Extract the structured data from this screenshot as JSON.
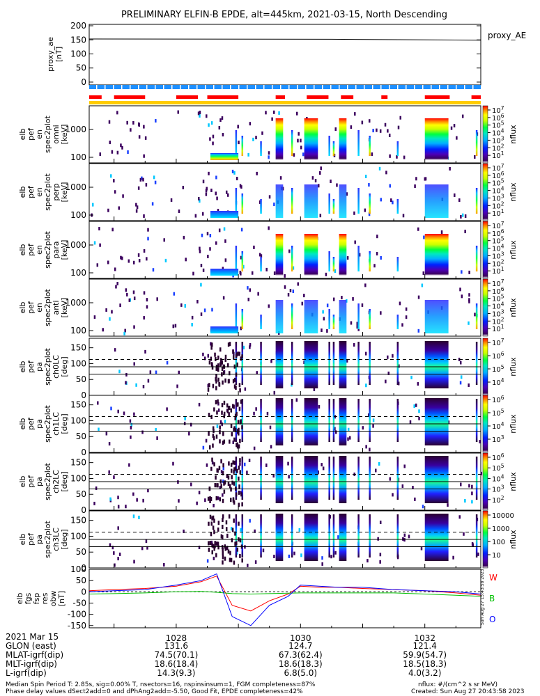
{
  "title": "PRELIMINARY ELFIN-B EPDE, alt=445km, 2021-03-15, North Descending",
  "ae_panel": {
    "ylabel_lines": [
      "proxy_ae",
      "[nT]"
    ],
    "side_label": "proxy_AE",
    "yticks": [
      "200",
      "150",
      "100",
      "50",
      "0"
    ],
    "ylim": [
      -10,
      205
    ]
  },
  "spectro_panels": [
    {
      "name": "en-omni",
      "ylabel_lines": [
        "elb",
        "pef",
        "en",
        "spec2plot",
        "omni",
        "[keV]"
      ],
      "yticks": [
        "1000",
        "100"
      ],
      "cbar_ticks": [
        "10^7",
        "10^6",
        "10^5",
        "10^4",
        "10^3",
        "10^2",
        "10^1"
      ],
      "cbar_label": "nflux"
    },
    {
      "name": "en-perp",
      "ylabel_lines": [
        "elb",
        "pef",
        "en",
        "spec2plot",
        "perp",
        "[keV]"
      ],
      "yticks": [
        "1000",
        "100"
      ],
      "cbar_ticks": [
        "10^7",
        "10^6",
        "10^5",
        "10^4",
        "10^3",
        "10^2",
        "10^1"
      ],
      "cbar_label": "nflux"
    },
    {
      "name": "en-para",
      "ylabel_lines": [
        "elb",
        "pef",
        "en",
        "spec2plot",
        "para",
        "[keV]"
      ],
      "yticks": [
        "1000",
        "100"
      ],
      "cbar_ticks": [
        "10^7",
        "10^6",
        "10^5",
        "10^4",
        "10^3",
        "10^2",
        "10^1"
      ],
      "cbar_label": "nflux"
    },
    {
      "name": "en-anti",
      "ylabel_lines": [
        "elb",
        "pef",
        "en",
        "spec2plot",
        "anti",
        "[keV]"
      ],
      "yticks": [
        "1000",
        "100"
      ],
      "cbar_ticks": [
        "10^7",
        "10^6",
        "10^5",
        "10^4",
        "10^3",
        "10^2",
        "10^1"
      ],
      "cbar_label": "nflux"
    },
    {
      "name": "pa-ch0LC",
      "ylabel_lines": [
        "elb",
        "pef",
        "pa",
        "spec2plot",
        "ch0LC",
        "[deg]"
      ],
      "yticks": [
        "150",
        "100",
        "50",
        "0"
      ],
      "cbar_ticks": [
        "10^7",
        "10^6",
        "10^5",
        "10^4"
      ],
      "cbar_label": "nflux"
    },
    {
      "name": "pa-ch1LC",
      "ylabel_lines": [
        "elb",
        "pef",
        "pa",
        "spec2plot",
        "ch1LC",
        "[deg]"
      ],
      "yticks": [
        "150",
        "100",
        "50",
        "0"
      ],
      "cbar_ticks": [
        "10^6",
        "10^5",
        "10^4",
        "10^3"
      ],
      "cbar_label": "nflux"
    },
    {
      "name": "pa-ch2LC",
      "ylabel_lines": [
        "elb",
        "pef",
        "pa",
        "spec2plot",
        "ch2LC",
        "[deg]"
      ],
      "yticks": [
        "150",
        "100",
        "50",
        "0"
      ],
      "cbar_ticks": [
        "10^6",
        "10^5",
        "10^4",
        "10^3",
        "10^2"
      ],
      "cbar_label": "nflux"
    },
    {
      "name": "pa-ch3LC",
      "ylabel_lines": [
        "elb",
        "pef",
        "pa",
        "spec2plot",
        "ch3LC",
        "[deg]"
      ],
      "yticks": [
        "150",
        "100",
        "50",
        "0"
      ],
      "cbar_ticks": [
        "10000",
        "1000",
        "100",
        "10"
      ],
      "cbar_label": "nflux"
    }
  ],
  "fgs_panel": {
    "ylabel_lines": [
      "elb",
      "fgs",
      "fsp",
      "res",
      "obw",
      "[nT]"
    ],
    "yticks": [
      "100",
      "50",
      "0",
      "-50",
      "-100",
      "-150"
    ],
    "legend": [
      {
        "name": "W",
        "color": "#ff0000"
      },
      {
        "name": "B",
        "color": "#00c000"
      },
      {
        "name": "O",
        "color": "#0000ff"
      }
    ],
    "stamp": "Sun Aug 27 15:43:58 2023"
  },
  "time_axis": {
    "label": "2021 Mar 15",
    "ticks": [
      "1028",
      "1030",
      "1032"
    ]
  },
  "ephemeris": {
    "rows": [
      {
        "label": "GLON (east)",
        "values": [
          "131.6",
          "124.7",
          "121.4"
        ]
      },
      {
        "label": "MLAT-igrf(dip)",
        "values": [
          "74.5(70.1)",
          "67.3(62.4)",
          "59.9(54.7)"
        ]
      },
      {
        "label": "MLT-igrf(dip)",
        "values": [
          "18.6(18.4)",
          "18.6(18.3)",
          "18.5(18.3)"
        ]
      },
      {
        "label": "L-igrf(dip)",
        "values": [
          "14.3(9.3)",
          "6.8(5.0)",
          "4.0(3.2)"
        ]
      }
    ]
  },
  "footer": {
    "line1": "Median Spin Period T: 2.85s, sig=0.00% T, nsectors=16, nspinsinsum=1, FGM completeness=87%",
    "line2": "Phase delay values dSect2add=0 and dPhAng2add=-5.50, Good Fit, EPDE completeness=42%",
    "units": "nflux: #/(cm^2 s sr MeV)",
    "created": "Created: Sun Aug 27 20:43:58 2023"
  },
  "colors": {
    "blue_bar": "#1e8fff",
    "red_bar": "#ff0000",
    "yellow_bar": "#ffcc00"
  },
  "chart_data": {
    "type": "heatmap",
    "x_range_minutes": [
      "10:26.6",
      "10:32.9"
    ],
    "proxy_ae": {
      "x": [
        "10:26.6",
        "10:30.5",
        "10:32.9"
      ],
      "values": [
        153,
        152,
        149
      ]
    },
    "science_zones": [
      [
        1026.6,
        1026.8
      ],
      [
        1027.0,
        1027.5
      ],
      [
        1028.0,
        1028.35
      ],
      [
        1028.5,
        1029.0
      ],
      [
        1029.6,
        1029.75
      ],
      [
        1030.1,
        1030.45
      ],
      [
        1030.65,
        1030.85
      ],
      [
        1031.3,
        1031.4
      ],
      [
        1032.0,
        1032.4
      ],
      [
        1032.75,
        1032.9
      ]
    ],
    "fgs_residuals": {
      "x": [
        1026.6,
        1027.0,
        1027.5,
        1028.0,
        1028.4,
        1028.65,
        1028.9,
        1029.2,
        1029.5,
        1029.8,
        1030.0,
        1030.3,
        1030.6,
        1031.0,
        1031.5,
        1032.0,
        1032.5,
        1032.9
      ],
      "series": [
        {
          "name": "W",
          "values": [
            5,
            10,
            15,
            25,
            45,
            70,
            -60,
            -85,
            -40,
            -10,
            25,
            20,
            20,
            15,
            10,
            5,
            -5,
            -15
          ]
        },
        {
          "name": "B",
          "values": [
            -10,
            -8,
            -5,
            0,
            2,
            -2,
            -8,
            -10,
            -8,
            -6,
            -5,
            -5,
            -5,
            -5,
            -5,
            -10,
            -15,
            -20
          ]
        },
        {
          "name": "O",
          "values": [
            0,
            5,
            10,
            30,
            50,
            80,
            -110,
            -150,
            -60,
            -20,
            30,
            25,
            20,
            20,
            10,
            5,
            0,
            -10
          ]
        }
      ]
    }
  }
}
